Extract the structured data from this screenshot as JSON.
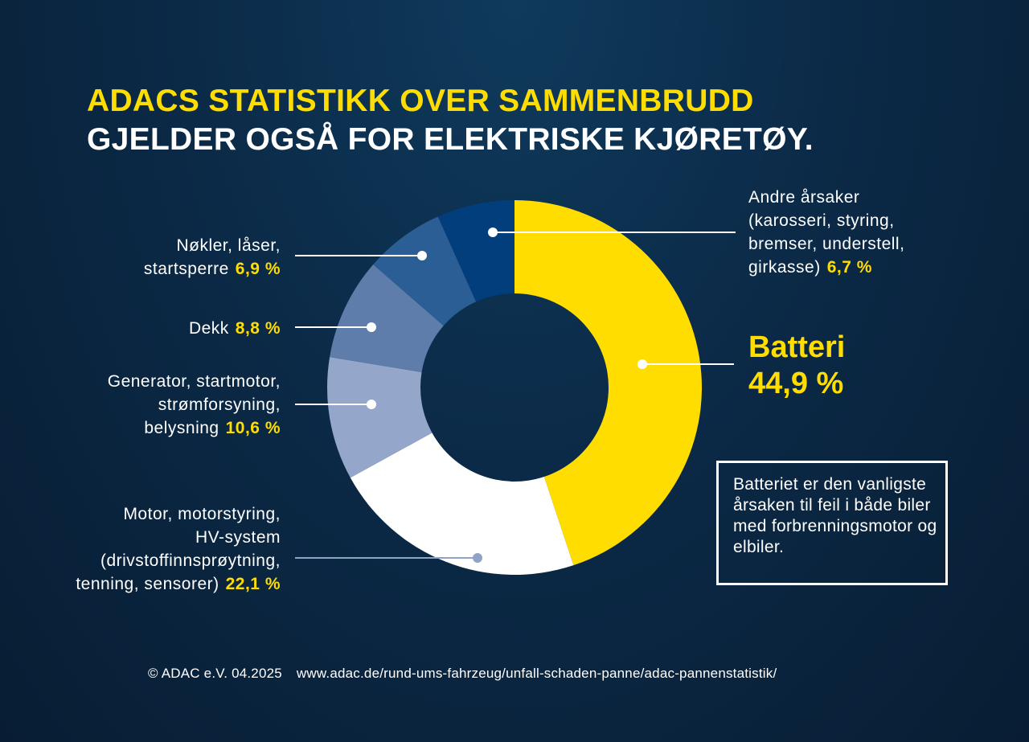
{
  "title": {
    "line1": "ADACS STATISTIKK OVER SAMMENBRUDD",
    "line2": "GJELDER OGSÅ FOR ELEKTRISKE KJØRETØY."
  },
  "chart_data": {
    "type": "pie",
    "donut": true,
    "start": "top, clockwise",
    "slices": [
      {
        "label": "Batteri",
        "value": 44.9,
        "value_text": "44,9 %",
        "color": "#ffdd00"
      },
      {
        "label_lines": [
          "Motor, motorstyring,",
          "HV-system",
          "(drivstoffinnsprøytning,",
          "tenning, sensorer)"
        ],
        "value": 22.1,
        "value_text": "22,1 %",
        "color": "#ffffff"
      },
      {
        "label_lines": [
          "Generator, startmotor,",
          "strømforsyning,",
          "belysning"
        ],
        "value": 10.6,
        "value_text": "10,6 %",
        "color": "#94a6c9"
      },
      {
        "label_lines": [
          "Dekk"
        ],
        "value": 8.8,
        "value_text": "8,8 %",
        "color": "#5e7dab"
      },
      {
        "label_lines": [
          "Nøkler, låser,",
          "startsperre"
        ],
        "value": 6.9,
        "value_text": "6,9 %",
        "color": "#2b5e94"
      },
      {
        "label_lines": [
          "Andre årsaker",
          "(karosseri, styring,",
          "bremser, understell,",
          "girkasse)"
        ],
        "value": 6.7,
        "value_text": "6,7 %",
        "color": "#023e7c"
      }
    ]
  },
  "note": "Batteriet er den vanligste årsaken til feil i både biler med forbrenningsmotor og elbiler.",
  "footer": {
    "copyright": "© ADAC e.V. 04.2025",
    "url": "www.adac.de/rund-ums-fahrzeug/unfall-schaden-panne/adac-pannenstatistik/"
  }
}
